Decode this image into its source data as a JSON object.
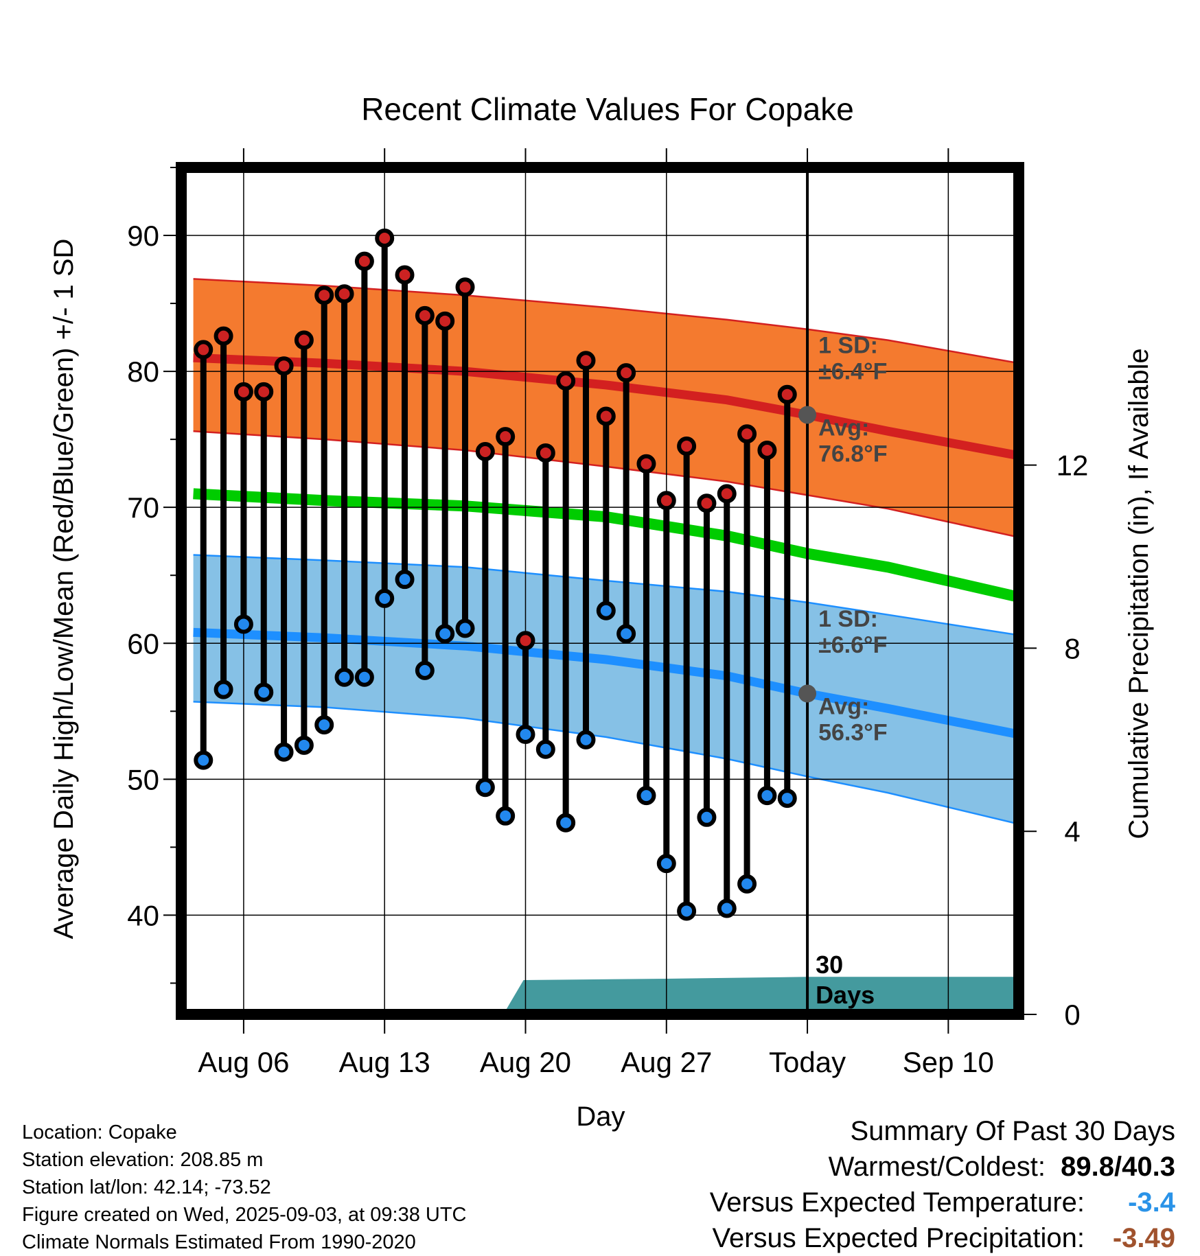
{
  "chart_data": {
    "type": "line",
    "title": "Recent Climate Values For Copake",
    "xlabel": "Day",
    "ylabel": "Average Daily High/Low/Mean (Red/Blue/Green) +/- 1 SD",
    "y2label": "Cumulative Precipitation (in), If Available",
    "ylim": [
      32.7,
      95
    ],
    "y2lim": [
      0,
      18.5
    ],
    "xlim": [
      2.9,
      44.5
    ],
    "x_ticks": [
      {
        "x": 6,
        "label": "Aug 06"
      },
      {
        "x": 13,
        "label": "Aug 13"
      },
      {
        "x": 20,
        "label": "Aug 20"
      },
      {
        "x": 27,
        "label": "Aug 27"
      },
      {
        "x": 34,
        "label": "Today"
      },
      {
        "x": 41,
        "label": "Sep 10"
      }
    ],
    "y_ticks": [
      40,
      50,
      60,
      70,
      80,
      90
    ],
    "y2_ticks": [
      0,
      4,
      8,
      12
    ],
    "grid": true,
    "today_x": 34,
    "today_label": "30\nDays",
    "normals": {
      "x": [
        3.5,
        10,
        17,
        24,
        30,
        34,
        38,
        44.5
      ],
      "high_avg": [
        81.0,
        80.6,
        80.0,
        79.0,
        77.9,
        76.8,
        75.6,
        73.8
      ],
      "high_upper": [
        86.8,
        86.3,
        85.6,
        84.7,
        83.8,
        83.1,
        82.3,
        80.6
      ],
      "high_lower": [
        75.6,
        75.0,
        74.2,
        73.0,
        71.9,
        70.9,
        69.9,
        67.8
      ],
      "mean": [
        71.0,
        70.5,
        70.1,
        69.3,
        67.9,
        66.6,
        65.6,
        63.4
      ],
      "low_avg": [
        60.8,
        60.4,
        59.8,
        58.8,
        57.6,
        56.3,
        55.2,
        53.3
      ],
      "low_upper": [
        66.5,
        66.1,
        65.6,
        64.6,
        63.8,
        63.0,
        62.1,
        60.6
      ],
      "low_lower": [
        55.7,
        55.3,
        54.5,
        53.1,
        51.5,
        50.2,
        49.0,
        46.7
      ]
    },
    "series": [
      {
        "name": "High",
        "x": [
          4,
          5,
          6,
          7,
          8,
          9,
          10,
          11,
          12,
          13,
          14,
          15,
          16,
          17,
          18,
          19,
          20,
          21,
          22,
          23,
          24,
          25,
          26,
          27,
          28,
          29,
          30,
          31,
          32,
          33
        ],
        "values": [
          81.6,
          82.6,
          78.5,
          78.5,
          80.4,
          82.3,
          85.6,
          85.7,
          88.1,
          89.8,
          87.1,
          84.1,
          83.7,
          86.2,
          74.1,
          75.2,
          60.2,
          74.0,
          79.3,
          80.8,
          76.7,
          79.9,
          73.2,
          70.5,
          74.5,
          70.3,
          71.0,
          75.4,
          74.2,
          78.3
        ]
      },
      {
        "name": "Low",
        "x": [
          4,
          5,
          6,
          7,
          8,
          9,
          10,
          11,
          12,
          13,
          14,
          15,
          16,
          17,
          18,
          19,
          20,
          21,
          22,
          23,
          24,
          25,
          26,
          27,
          28,
          29,
          30,
          31,
          32,
          33
        ],
        "values": [
          51.4,
          56.6,
          61.4,
          56.4,
          52.0,
          52.5,
          54.0,
          57.5,
          57.5,
          63.3,
          64.7,
          58.0,
          60.7,
          61.1,
          49.4,
          47.3,
          53.3,
          52.2,
          46.8,
          52.9,
          62.4,
          60.7,
          48.8,
          43.8,
          40.3,
          47.2,
          40.5,
          42.3,
          48.8,
          48.6
        ]
      },
      {
        "name": "Precipitation",
        "x": [
          3.5,
          18.9,
          19.9,
          27,
          34,
          44.5
        ],
        "values": [
          0,
          0,
          0.75,
          0.78,
          0.82,
          0.82
        ]
      }
    ],
    "annotations": {
      "high_sd": "1 SD:\n±6.4°F",
      "high_avg": "Avg:\n76.8°F",
      "low_sd": "1 SD:\n±6.6°F",
      "low_avg": "Avg:\n56.3°F"
    },
    "colors": {
      "high_band": "#f47a2f",
      "high_band_edge": "#d32020",
      "high_avg": "#d32020",
      "mean": "#00cc00",
      "low_band": "#86c1e6",
      "low_band_edge": "#1e8fff",
      "low_avg": "#1e8fff",
      "precip": "#449a9e",
      "high_dot": "#cc2222",
      "low_dot": "#2288ee",
      "today_dot": "#555555"
    }
  },
  "info": {
    "location": "Location: Copake",
    "elevation": "Station elevation: 208.85 m",
    "latlon": "Station lat/lon: 42.14; -73.52",
    "created": "Figure created on Wed, 2025-09-03, at 09:38 UTC",
    "normals": "Climate Normals Estimated From 1990-2020"
  },
  "summary": {
    "heading": "Summary Of Past 30 Days",
    "warmest_label": "Warmest/Coldest:",
    "warmest_value": "89.8/40.3",
    "temp_label": "Versus Expected Temperature:",
    "temp_value": "-3.4",
    "temp_color": "#2a93e8",
    "precip_label": "Versus Expected Precipitation:",
    "precip_value": "-3.49",
    "precip_color": "#a0522d"
  }
}
